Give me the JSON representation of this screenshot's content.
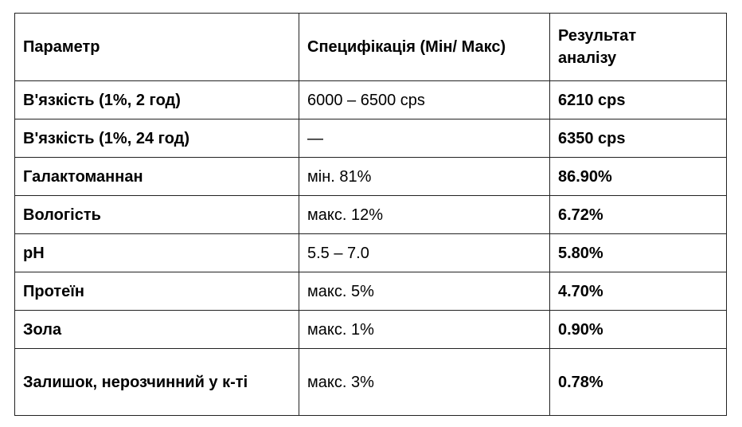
{
  "table": {
    "header": [
      "Параметр",
      "Специфікація (Мін/ Макс)",
      "Результат аналізу"
    ],
    "rows": [
      [
        "В'язкість (1%, 2 год)",
        "6000 – 6500 cps",
        "6210 cps"
      ],
      [
        "В'язкість (1%, 24 год)",
        "—",
        "6350 cps"
      ],
      [
        "Галактоманнан",
        "мін. 81%",
        "86.90%"
      ],
      [
        "Вологість",
        "макс. 12%",
        "6.72%"
      ],
      [
        "pH",
        "5.5 – 7.0",
        "5.80%"
      ],
      [
        "Протеїн",
        "макс. 5%",
        "4.70%"
      ],
      [
        "Зола",
        "макс. 1%",
        "0.90%"
      ],
      [
        "Залишок, нерозчинний у к-ті",
        "макс. 3%",
        "0.78%"
      ]
    ]
  }
}
